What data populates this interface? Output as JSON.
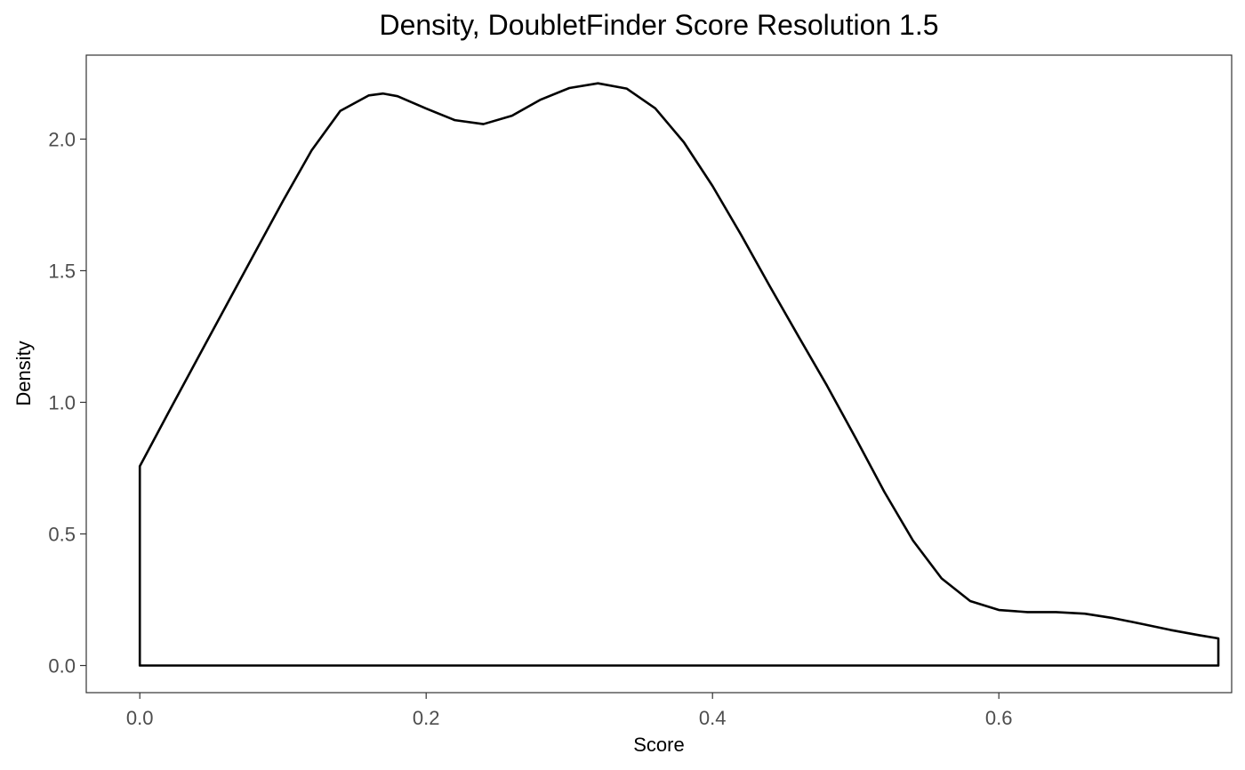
{
  "chart_data": {
    "type": "area",
    "title": "Density, DoubletFinder Score Resolution 1.5",
    "xlabel": "Score",
    "ylabel": "Density",
    "xlim": [
      -0.0374,
      0.7626
    ],
    "ylim": [
      -0.103,
      2.319
    ],
    "xticks": [
      0.0,
      0.2,
      0.4,
      0.6
    ],
    "xtick_labels": [
      "0.0",
      "0.2",
      "0.4",
      "0.6"
    ],
    "yticks": [
      0.0,
      0.5,
      1.0,
      1.5,
      2.0
    ],
    "ytick_labels": [
      "0.0",
      "0.5",
      "1.0",
      "1.5",
      "2.0"
    ],
    "grid": false,
    "line_color": "#000000",
    "fill_color": "none",
    "panel_border_color": "#333333",
    "series": [
      {
        "x": [
          0.0,
          0.02,
          0.04,
          0.06,
          0.08,
          0.1,
          0.12,
          0.14,
          0.16,
          0.17,
          0.18,
          0.2,
          0.22,
          0.24,
          0.26,
          0.28,
          0.3,
          0.32,
          0.34,
          0.36,
          0.38,
          0.4,
          0.42,
          0.44,
          0.46,
          0.48,
          0.5,
          0.52,
          0.54,
          0.56,
          0.58,
          0.6,
          0.62,
          0.64,
          0.66,
          0.68,
          0.7,
          0.72,
          0.74,
          0.7533
        ],
        "y": [
          0.757,
          0.961,
          1.163,
          1.364,
          1.565,
          1.765,
          1.957,
          2.107,
          2.166,
          2.173,
          2.163,
          2.116,
          2.072,
          2.057,
          2.089,
          2.15,
          2.194,
          2.212,
          2.192,
          2.117,
          1.988,
          1.822,
          1.636,
          1.441,
          1.251,
          1.063,
          0.864,
          0.66,
          0.475,
          0.331,
          0.245,
          0.211,
          0.203,
          0.203,
          0.197,
          0.18,
          0.158,
          0.135,
          0.115,
          0.103
        ]
      }
    ]
  }
}
